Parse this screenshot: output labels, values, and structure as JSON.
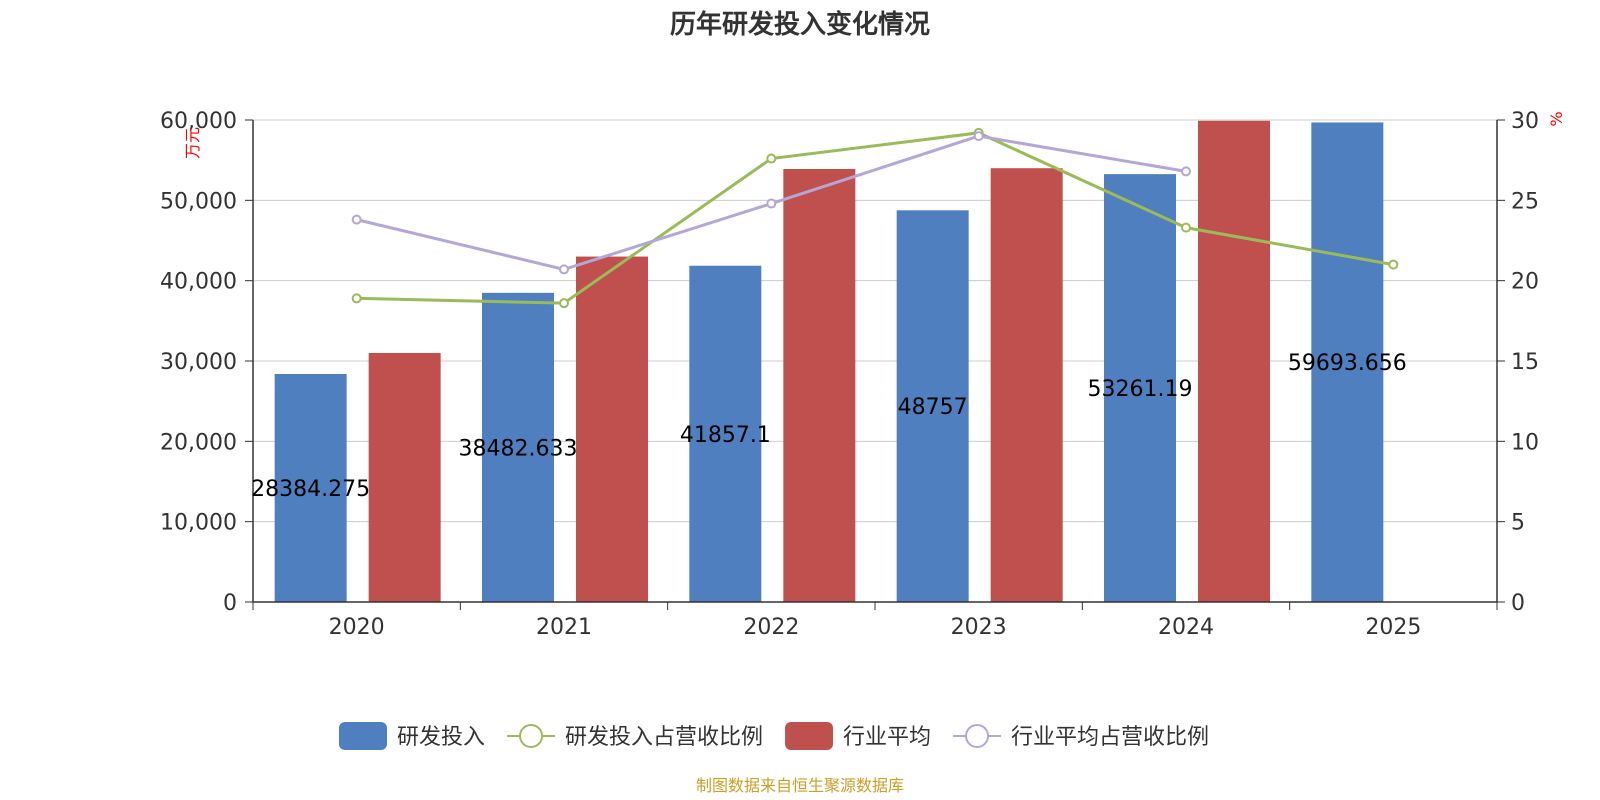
{
  "chart_data": {
    "type": "bar",
    "title": "历年研发投入变化情况",
    "categories": [
      "2020",
      "2021",
      "2022",
      "2023",
      "2024",
      "2025"
    ],
    "y_left": {
      "unit_label": "万元",
      "ylim": [
        0,
        60000
      ],
      "ticks": [
        0,
        10000,
        20000,
        30000,
        40000,
        50000,
        60000
      ],
      "tick_labels": [
        "0",
        "10,000",
        "20,000",
        "30,000",
        "40,000",
        "50,000",
        "60,000"
      ]
    },
    "y_right": {
      "unit_label": "%",
      "ylim": [
        0,
        30
      ],
      "ticks": [
        0,
        5,
        10,
        15,
        20,
        25,
        30
      ],
      "tick_labels": [
        "0",
        "5",
        "10",
        "15",
        "20",
        "25",
        "30"
      ]
    },
    "series": [
      {
        "name": "研发投入",
        "kind": "bar",
        "axis": "left",
        "color": "#4f7fbe",
        "values": [
          28384.275,
          38482.633,
          41857.1,
          48757,
          53261.19,
          59693.656
        ],
        "labels": [
          "28384.275",
          "38482.633",
          "41857.1",
          "48757",
          "53261.19",
          "59693.656"
        ]
      },
      {
        "name": "研发投入占营收比例",
        "kind": "line",
        "axis": "right",
        "color": "#9bbb59",
        "values": [
          18.9,
          18.6,
          27.6,
          29.2,
          23.3,
          21.0
        ]
      },
      {
        "name": "行业平均",
        "kind": "bar",
        "axis": "left",
        "color": "#c0504d",
        "values": [
          31000,
          43000,
          53900,
          54000,
          59900,
          null
        ]
      },
      {
        "name": "行业平均占营收比例",
        "kind": "line",
        "axis": "right",
        "color": "#b4a7d6",
        "values": [
          23.8,
          20.7,
          24.8,
          29.0,
          26.8,
          null
        ]
      }
    ],
    "grid": true,
    "legend_position": "bottom"
  },
  "source_note": "制图数据来自恒生聚源数据库"
}
